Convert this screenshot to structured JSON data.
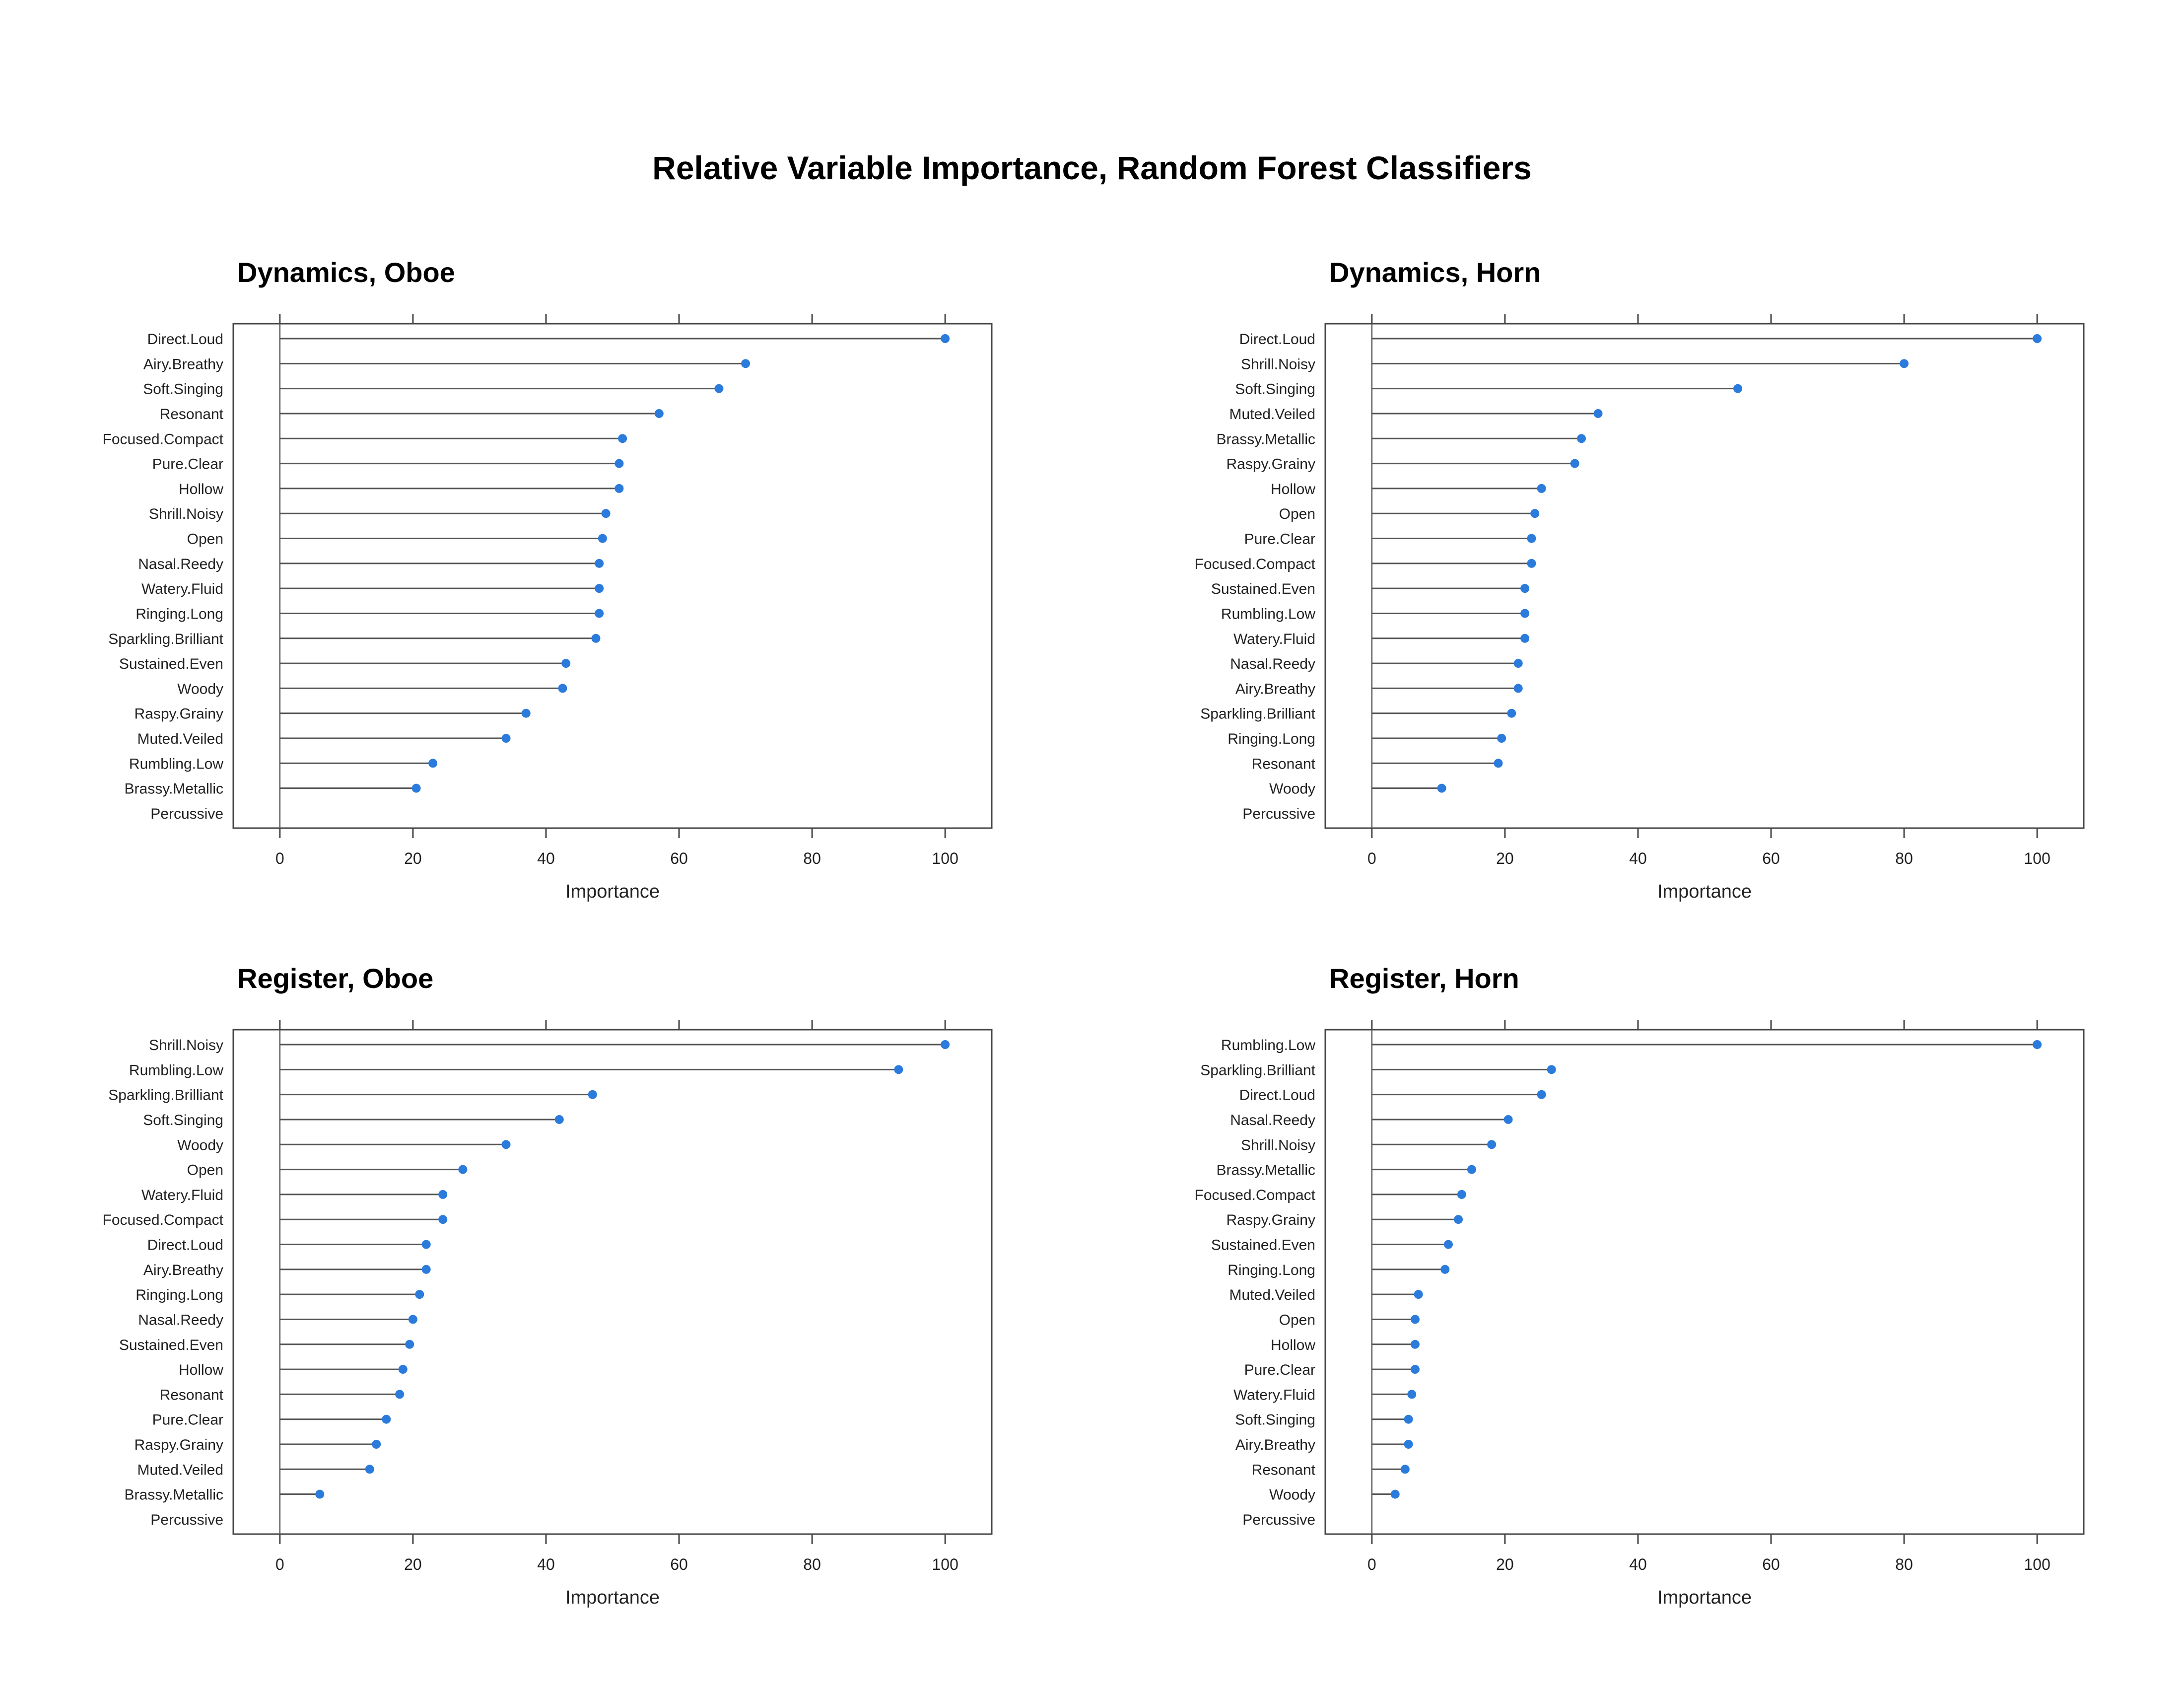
{
  "title": "Relative Variable Importance, Random Forest Classifiers",
  "chart_data": [
    {
      "type": "lollipop",
      "title": "Dynamics, Oboe",
      "xlabel": "Importance",
      "xlim": [
        -7,
        107
      ],
      "xticks": [
        0,
        20,
        40,
        60,
        80,
        100
      ],
      "grid": false,
      "color": "#2b7bdc",
      "categories": [
        "Direct.Loud",
        "Airy.Breathy",
        "Soft.Singing",
        "Resonant",
        "Focused.Compact",
        "Pure.Clear",
        "Hollow",
        "Shrill.Noisy",
        "Open",
        "Nasal.Reedy",
        "Watery.Fluid",
        "Ringing.Long",
        "Sparkling.Brilliant",
        "Sustained.Even",
        "Woody",
        "Raspy.Grainy",
        "Muted.Veiled",
        "Rumbling.Low",
        "Brassy.Metallic",
        "Percussive"
      ],
      "values": [
        100,
        70,
        66,
        57,
        51.5,
        51,
        51,
        49,
        48.5,
        48,
        48,
        48,
        47.5,
        43,
        42.5,
        37,
        34,
        23,
        20.5,
        0
      ]
    },
    {
      "type": "lollipop",
      "title": "Dynamics, Horn",
      "xlabel": "Importance",
      "xlim": [
        -7,
        107
      ],
      "xticks": [
        0,
        20,
        40,
        60,
        80,
        100
      ],
      "grid": false,
      "color": "#2b7bdc",
      "categories": [
        "Direct.Loud",
        "Shrill.Noisy",
        "Soft.Singing",
        "Muted.Veiled",
        "Brassy.Metallic",
        "Raspy.Grainy",
        "Hollow",
        "Open",
        "Pure.Clear",
        "Focused.Compact",
        "Sustained.Even",
        "Rumbling.Low",
        "Watery.Fluid",
        "Nasal.Reedy",
        "Airy.Breathy",
        "Sparkling.Brilliant",
        "Ringing.Long",
        "Resonant",
        "Woody",
        "Percussive"
      ],
      "values": [
        100,
        80,
        55,
        34,
        31.5,
        30.5,
        25.5,
        24.5,
        24,
        24,
        23,
        23,
        23,
        22,
        22,
        21,
        19.5,
        19,
        10.5,
        0
      ]
    },
    {
      "type": "lollipop",
      "title": "Register, Oboe",
      "xlabel": "Importance",
      "xlim": [
        -7,
        107
      ],
      "xticks": [
        0,
        20,
        40,
        60,
        80,
        100
      ],
      "grid": false,
      "color": "#2b7bdc",
      "categories": [
        "Shrill.Noisy",
        "Rumbling.Low",
        "Sparkling.Brilliant",
        "Soft.Singing",
        "Woody",
        "Open",
        "Watery.Fluid",
        "Focused.Compact",
        "Direct.Loud",
        "Airy.Breathy",
        "Ringing.Long",
        "Nasal.Reedy",
        "Sustained.Even",
        "Hollow",
        "Resonant",
        "Pure.Clear",
        "Raspy.Grainy",
        "Muted.Veiled",
        "Brassy.Metallic",
        "Percussive"
      ],
      "values": [
        100,
        93,
        47,
        42,
        34,
        27.5,
        24.5,
        24.5,
        22,
        22,
        21,
        20,
        19.5,
        18.5,
        18,
        16,
        14.5,
        13.5,
        6,
        0
      ]
    },
    {
      "type": "lollipop",
      "title": "Register, Horn",
      "xlabel": "Importance",
      "xlim": [
        -7,
        107
      ],
      "xticks": [
        0,
        20,
        40,
        60,
        80,
        100
      ],
      "grid": false,
      "color": "#2b7bdc",
      "categories": [
        "Rumbling.Low",
        "Sparkling.Brilliant",
        "Direct.Loud",
        "Nasal.Reedy",
        "Shrill.Noisy",
        "Brassy.Metallic",
        "Focused.Compact",
        "Raspy.Grainy",
        "Sustained.Even",
        "Ringing.Long",
        "Muted.Veiled",
        "Open",
        "Hollow",
        "Pure.Clear",
        "Watery.Fluid",
        "Soft.Singing",
        "Airy.Breathy",
        "Resonant",
        "Woody",
        "Percussive"
      ],
      "values": [
        100,
        27,
        25.5,
        20.5,
        18,
        15,
        13.5,
        13,
        11.5,
        11,
        7,
        6.5,
        6.5,
        6.5,
        6,
        5.5,
        5.5,
        5,
        3.5,
        0
      ]
    }
  ]
}
